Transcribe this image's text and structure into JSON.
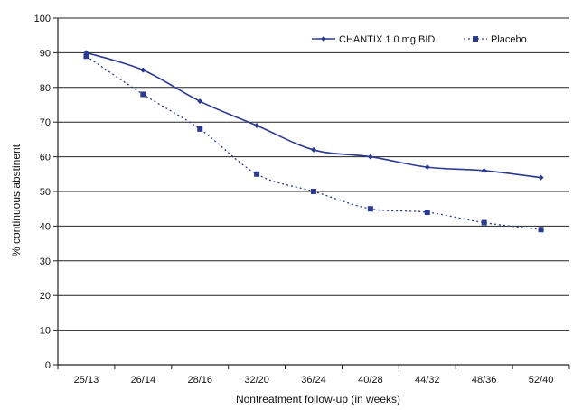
{
  "chart_data": {
    "type": "line",
    "categories": [
      "25/13",
      "26/14",
      "28/16",
      "32/20",
      "36/24",
      "40/28",
      "44/32",
      "48/36",
      "52/40"
    ],
    "series": [
      {
        "name": "CHANTIX 1.0 mg BID",
        "values": [
          90,
          85,
          76,
          69,
          62,
          60,
          57,
          56,
          54
        ],
        "color": "#2b3a8f",
        "line": "solid",
        "marker": "diamond"
      },
      {
        "name": "Placebo",
        "values": [
          89,
          78,
          68,
          55,
          50,
          45,
          44,
          41,
          39
        ],
        "color": "#2b3a8f",
        "line": "dotted",
        "marker": "square"
      }
    ],
    "xlabel": "Nontreatment follow-up (in weeks)",
    "ylabel": "% continuous abstinent",
    "ylim": [
      0,
      100
    ],
    "yticks": [
      0,
      10,
      20,
      30,
      40,
      50,
      60,
      70,
      80,
      90,
      100
    ],
    "grid": true,
    "legend": "top-right"
  }
}
